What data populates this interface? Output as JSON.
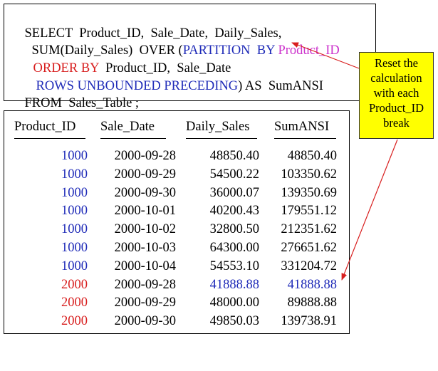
{
  "sql": {
    "line1": "SELECT  Product_ID,  Sale_Date,  Daily_Sales,",
    "line2_a": "SUM(Daily_Sales)  OVER (",
    "line2_b": "PARTITION  BY ",
    "line2_c": "Product_ID",
    "line3_a": "ORDER BY",
    "line3_b": "  Product_ID,  Sale_Date",
    "line4_a": "ROWS UNBOUNDED PRECEDING",
    "line4_b": ") AS  SumANSI",
    "line5": "FROM  Sales_Table ;"
  },
  "callout": {
    "lines": [
      "Reset the",
      "calculation",
      "with  each",
      "Product_ID",
      "break"
    ]
  },
  "table": {
    "columns": [
      "Product_ID",
      "Sale_Date",
      "Daily_Sales",
      "SumANSI"
    ],
    "rows": [
      {
        "product_id": "1000",
        "sale_date": "2000-09-28",
        "daily_sales": "48850.40",
        "sum_ansi": "48850.40"
      },
      {
        "product_id": "1000",
        "sale_date": "2000-09-29",
        "daily_sales": "54500.22",
        "sum_ansi": "103350.62"
      },
      {
        "product_id": "1000",
        "sale_date": "2000-09-30",
        "daily_sales": "36000.07",
        "sum_ansi": "139350.69"
      },
      {
        "product_id": "1000",
        "sale_date": "2000-10-01",
        "daily_sales": "40200.43",
        "sum_ansi": "179551.12"
      },
      {
        "product_id": "1000",
        "sale_date": "2000-10-02",
        "daily_sales": "32800.50",
        "sum_ansi": "212351.62"
      },
      {
        "product_id": "1000",
        "sale_date": "2000-10-03",
        "daily_sales": "64300.00",
        "sum_ansi": "276651.62"
      },
      {
        "product_id": "1000",
        "sale_date": "2000-10-04",
        "daily_sales": "54553.10",
        "sum_ansi": "331204.72"
      },
      {
        "product_id": "2000",
        "sale_date": "2000-09-28",
        "daily_sales": "41888.88",
        "sum_ansi": "41888.88"
      },
      {
        "product_id": "2000",
        "sale_date": "2000-09-29",
        "daily_sales": "48000.00",
        "sum_ansi": "89888.88"
      },
      {
        "product_id": "2000",
        "sale_date": "2000-09-30",
        "daily_sales": "49850.03",
        "sum_ansi": "139738.91"
      }
    ]
  },
  "colors": {
    "keyword_blue": "#1f2bb8",
    "keyword_red": "#d81e1e",
    "partition_column_magenta": "#cc33cc",
    "product_1000": "#1f2bb8",
    "product_2000": "#d81e1e",
    "reset_row_highlight": "#1f2bb8",
    "callout_bg": "#ffff00",
    "arrow": "#d81e1e"
  }
}
